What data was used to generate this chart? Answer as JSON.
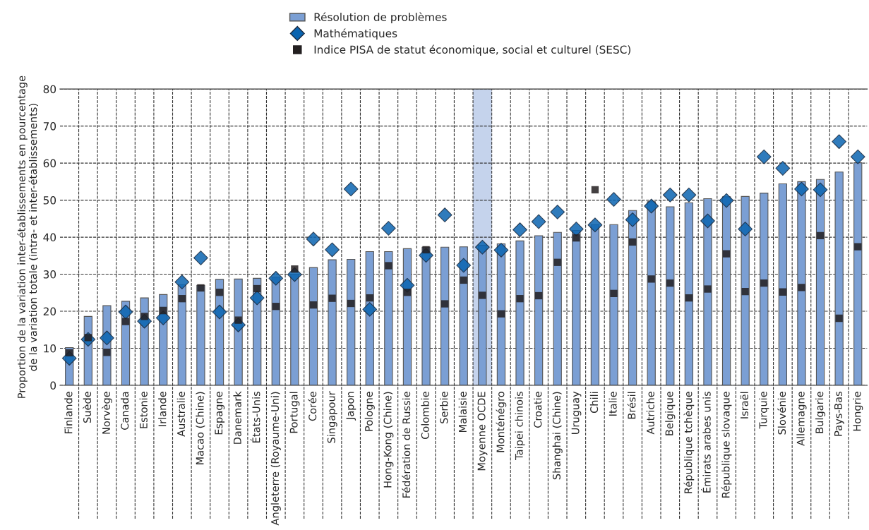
{
  "chart_data": {
    "type": "bar",
    "ylabel": "Proportion de la variation inter-établissements en pourcentage\nde la variation totale (intra- et inter-établissements)",
    "categories": [
      "Finlande",
      "Suède",
      "Norvège",
      "Canada",
      "Estonie",
      "Irlande",
      "Australie",
      "Macao (Chine)",
      "Espagne",
      "Danemark",
      "États-Unis",
      "Angleterre (Royaume-Uni)",
      "Portugal",
      "Corée",
      "Singapour",
      "Japon",
      "Pologne",
      "Hong-Kong (Chine)",
      "Fédération de Russie",
      "Colombie",
      "Serbie",
      "Malaisie",
      "Moyenne OCDE",
      "Monténégro",
      "Taipei chinois",
      "Croatie",
      "Shanghai (Chine)",
      "Uruguay",
      "Chili",
      "Italie",
      "Brésil",
      "Autriche",
      "Belgique",
      "République tchèque",
      "Émirats arabes unis",
      "République slovaque",
      "Israël",
      "Turquie",
      "Slovénie",
      "Allemagne",
      "Bulgarie",
      "Pays-Bas",
      "Hongrie"
    ],
    "series": [
      {
        "name": "Résolution de problèmes",
        "color": "#7b9fd4",
        "values": [
          10.2,
          18.6,
          21.5,
          22.7,
          23.6,
          24.5,
          27.2,
          27.0,
          28.6,
          28.7,
          28.9,
          29.2,
          30.0,
          31.8,
          33.9,
          34.0,
          36.1,
          36.1,
          36.9,
          37.3,
          37.3,
          37.4,
          37.8,
          38.2,
          39.0,
          40.4,
          41.3,
          41.8,
          43.4,
          43.4,
          47.2,
          49.6,
          48.2,
          49.3,
          50.4,
          50.9,
          51.0,
          51.9,
          54.4,
          55.0,
          55.6,
          57.6,
          60.1
        ]
      },
      {
        "name": "Mathématiques",
        "type": "scatter",
        "marker": "diamond",
        "color": "#0a64b0",
        "values": [
          7.3,
          12.4,
          12.8,
          19.8,
          17.3,
          18.2,
          27.9,
          34.4,
          19.8,
          16.3,
          23.6,
          28.9,
          29.9,
          39.5,
          36.6,
          53.0,
          20.5,
          42.4,
          27.0,
          35.1,
          46.0,
          32.4,
          37.3,
          36.5,
          42.0,
          44.2,
          46.8,
          42.2,
          43.3,
          50.2,
          44.7,
          48.4,
          51.4,
          51.4,
          44.4,
          49.9,
          42.2,
          61.7,
          58.6,
          53.0,
          52.8,
          65.8,
          61.7
        ]
      },
      {
        "name": "Indice PISA de statut économique, social et culturel (SESC)",
        "type": "scatter",
        "marker": "square",
        "color": "#231f20",
        "values": [
          8.8,
          12.9,
          8.9,
          17.2,
          18.6,
          20.2,
          23.4,
          26.3,
          25.1,
          17.6,
          26.1,
          21.3,
          31.4,
          21.7,
          23.5,
          22.1,
          23.6,
          32.3,
          25.1,
          36.6,
          22.0,
          28.4,
          24.3,
          19.3,
          23.4,
          24.2,
          33.2,
          39.8,
          52.8,
          24.8,
          38.7,
          28.7,
          27.6,
          23.6,
          26.0,
          35.5,
          25.3,
          27.6,
          25.2,
          26.4,
          40.4,
          18.1,
          37.4
        ]
      }
    ],
    "ylim": [
      0,
      80
    ],
    "yticks": [
      0,
      10,
      20,
      30,
      40,
      50,
      60,
      70,
      80
    ],
    "grid": true,
    "legend": "top",
    "bands": [
      {
        "axis": "x",
        "from": "Moyenne OCDE",
        "to": "Moyenne OCDE",
        "color": "#c5d3ec"
      }
    ]
  }
}
